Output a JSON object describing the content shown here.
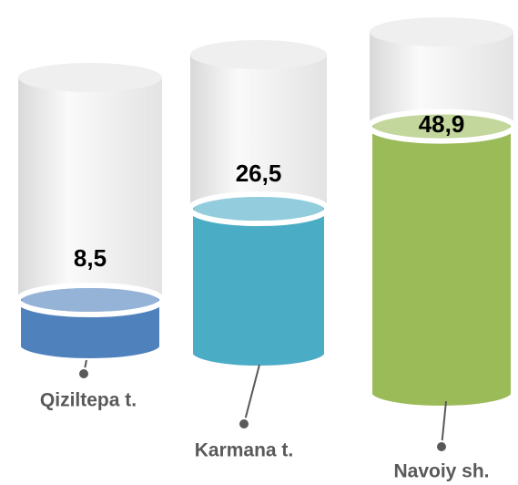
{
  "chart_data": {
    "type": "cylinder",
    "categories": [
      "Qiziltepa t.",
      "Karmana t.",
      "Navoiy sh."
    ],
    "values": [
      8.5,
      26.5,
      48.9
    ],
    "value_labels": [
      "8,5",
      "26,5",
      "48,9"
    ],
    "colors": [
      "#4f81bd",
      "#4bacc6",
      "#9bbb59"
    ]
  }
}
